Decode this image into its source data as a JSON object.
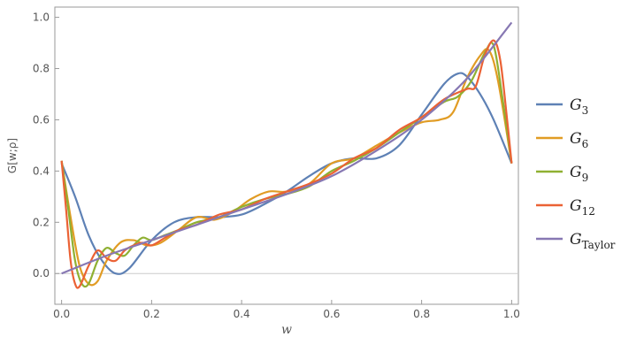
{
  "chart_data": {
    "type": "line",
    "xlabel": "w",
    "ylabel": "G[w;ρ]",
    "xlim": [
      -0.015,
      1.015
    ],
    "ylim": [
      -0.12,
      1.04
    ],
    "xticks": [
      "0.0",
      "0.2",
      "0.4",
      "0.6",
      "0.8",
      "1.0"
    ],
    "yticks": [
      "0.0",
      "0.2",
      "0.4",
      "0.6",
      "0.8",
      "1.0"
    ],
    "grid": false,
    "zero_line": true,
    "legend_position": "right",
    "series": [
      {
        "name": "G",
        "sub": "3",
        "color": "#5E81B5",
        "x": [
          0,
          0.03,
          0.06,
          0.09,
          0.12,
          0.15,
          0.2,
          0.25,
          0.3,
          0.35,
          0.4,
          0.45,
          0.5,
          0.55,
          0.6,
          0.65,
          0.7,
          0.75,
          0.8,
          0.85,
          0.88,
          0.9,
          0.93,
          0.96,
          1.0
        ],
        "y": [
          0.43,
          0.3,
          0.15,
          0.05,
          0.0,
          0.02,
          0.13,
          0.2,
          0.22,
          0.22,
          0.23,
          0.27,
          0.32,
          0.38,
          0.43,
          0.45,
          0.45,
          0.5,
          0.62,
          0.74,
          0.78,
          0.77,
          0.7,
          0.6,
          0.43
        ]
      },
      {
        "name": "G",
        "sub": "6",
        "color": "#E19C24",
        "x": [
          0,
          0.02,
          0.04,
          0.06,
          0.08,
          0.1,
          0.13,
          0.16,
          0.19,
          0.22,
          0.26,
          0.3,
          0.34,
          0.38,
          0.42,
          0.46,
          0.5,
          0.55,
          0.6,
          0.65,
          0.7,
          0.75,
          0.8,
          0.84,
          0.87,
          0.9,
          0.93,
          0.95,
          0.97,
          1.0
        ],
        "y": [
          0.44,
          0.22,
          0.03,
          -0.04,
          -0.03,
          0.05,
          0.12,
          0.13,
          0.11,
          0.12,
          0.17,
          0.22,
          0.21,
          0.24,
          0.29,
          0.32,
          0.32,
          0.35,
          0.43,
          0.45,
          0.5,
          0.55,
          0.59,
          0.6,
          0.63,
          0.76,
          0.85,
          0.87,
          0.75,
          0.43
        ]
      },
      {
        "name": "G",
        "sub": "9",
        "color": "#8FB032",
        "x": [
          0,
          0.015,
          0.03,
          0.045,
          0.06,
          0.08,
          0.1,
          0.12,
          0.14,
          0.16,
          0.18,
          0.2,
          0.23,
          0.26,
          0.3,
          0.35,
          0.4,
          0.45,
          0.5,
          0.55,
          0.6,
          0.65,
          0.7,
          0.75,
          0.8,
          0.85,
          0.88,
          0.91,
          0.94,
          0.96,
          0.98,
          1.0
        ],
        "y": [
          0.44,
          0.25,
          0.05,
          -0.04,
          -0.04,
          0.05,
          0.1,
          0.08,
          0.07,
          0.11,
          0.14,
          0.13,
          0.15,
          0.17,
          0.2,
          0.22,
          0.26,
          0.29,
          0.31,
          0.34,
          0.4,
          0.44,
          0.49,
          0.55,
          0.61,
          0.67,
          0.69,
          0.75,
          0.86,
          0.89,
          0.68,
          0.43
        ]
      },
      {
        "name": "G",
        "sub": "12",
        "color": "#EB6235",
        "x": [
          0,
          0.01,
          0.02,
          0.03,
          0.04,
          0.06,
          0.08,
          0.1,
          0.12,
          0.14,
          0.16,
          0.18,
          0.2,
          0.23,
          0.26,
          0.3,
          0.35,
          0.4,
          0.45,
          0.5,
          0.55,
          0.6,
          0.65,
          0.7,
          0.75,
          0.8,
          0.85,
          0.9,
          0.92,
          0.94,
          0.96,
          0.975,
          0.99,
          1.0
        ],
        "y": [
          0.44,
          0.25,
          0.05,
          -0.04,
          -0.05,
          0.03,
          0.09,
          0.06,
          0.05,
          0.09,
          0.11,
          0.12,
          0.11,
          0.14,
          0.17,
          0.19,
          0.23,
          0.25,
          0.29,
          0.32,
          0.35,
          0.39,
          0.45,
          0.49,
          0.56,
          0.61,
          0.68,
          0.72,
          0.73,
          0.85,
          0.91,
          0.83,
          0.6,
          0.43
        ]
      },
      {
        "name": "G",
        "sub": "Taylor",
        "color": "#8778B3",
        "x": [
          0,
          0.1,
          0.2,
          0.3,
          0.4,
          0.5,
          0.6,
          0.7,
          0.8,
          0.9,
          1.0
        ],
        "y": [
          0.0,
          0.07,
          0.13,
          0.19,
          0.25,
          0.31,
          0.38,
          0.48,
          0.6,
          0.76,
          0.98
        ]
      }
    ]
  }
}
